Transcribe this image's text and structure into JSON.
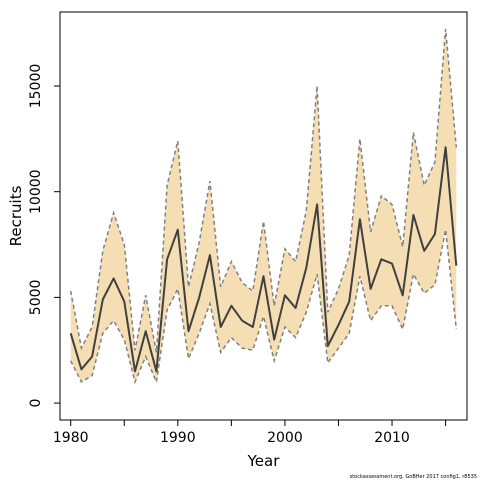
{
  "chart_data": {
    "type": "line",
    "xlabel": "Year",
    "ylabel": "Recruits",
    "xlim": [
      1979,
      2017
    ],
    "ylim": [
      -800,
      18500
    ],
    "x_ticks": [
      1980,
      1985,
      1990,
      1995,
      2000,
      2005,
      2010,
      2015
    ],
    "x_tick_labels": [
      "1980",
      "1990",
      "2000",
      "2010"
    ],
    "y_ticks": [
      0,
      5000,
      10000,
      15000
    ],
    "y_tick_labels": [
      "0",
      "5000",
      "10000",
      "15000"
    ],
    "grid": false,
    "legend": "none",
    "footnote": "stockassessment.org, GoBHer 2017 config1, r8535",
    "colors": {
      "band": "#f5deb3",
      "band_edge": "#808080",
      "line": "#404040"
    },
    "x": [
      1980,
      1981,
      1982,
      1983,
      1984,
      1985,
      1986,
      1987,
      1988,
      1989,
      1990,
      1991,
      1992,
      1993,
      1994,
      1995,
      1996,
      1997,
      1998,
      1999,
      2000,
      2001,
      2002,
      2003,
      2004,
      2005,
      2006,
      2007,
      2008,
      2009,
      2010,
      2011,
      2012,
      2013,
      2014,
      2015,
      2016
    ],
    "series": [
      {
        "role": "estimate",
        "values": [
          3300,
          1600,
          2200,
          4900,
          5900,
          4800,
          1500,
          3400,
          1500,
          6800,
          8200,
          3400,
          5000,
          7000,
          3600,
          4600,
          3900,
          3600,
          6000,
          3000,
          5100,
          4500,
          6400,
          9400,
          2700,
          3700,
          4800,
          8700,
          5400,
          6800,
          6600,
          5100,
          8900,
          7200,
          8000,
          12100,
          6500
        ]
      },
      {
        "role": "upper",
        "values": [
          5300,
          2600,
          3600,
          7200,
          9000,
          7500,
          2500,
          5100,
          2400,
          10300,
          12400,
          5500,
          7600,
          10500,
          5500,
          6700,
          5700,
          5300,
          8600,
          4600,
          7300,
          6700,
          9100,
          15000,
          4300,
          5400,
          7000,
          12500,
          8100,
          9800,
          9400,
          7400,
          12800,
          10300,
          11400,
          17700,
          12100
        ]
      },
      {
        "role": "lower",
        "values": [
          2000,
          1000,
          1300,
          3300,
          3900,
          3000,
          1000,
          2200,
          1000,
          4400,
          5400,
          2100,
          3300,
          4700,
          2400,
          3100,
          2600,
          2500,
          4100,
          2000,
          3600,
          3100,
          4300,
          6100,
          1900,
          2600,
          3300,
          6000,
          3900,
          4600,
          4600,
          3500,
          6100,
          5200,
          5600,
          8200,
          3500
        ]
      }
    ]
  }
}
